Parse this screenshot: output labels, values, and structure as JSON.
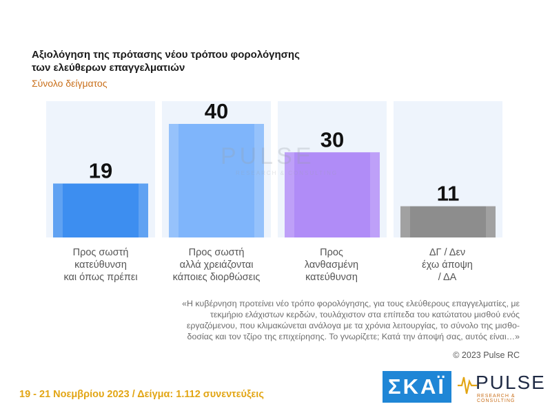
{
  "title": "Αξιολόγηση της πρότασης νέου τρόπου φορολόγησης των ελεύθερων επαγγελματιών",
  "subtitle": "Σύνολο δείγματος",
  "chart_data": {
    "type": "bar",
    "categories": [
      "Προς σωστή κατεύθυνση και όπως πρέπει",
      "Προς σωστή αλλά χρειάζονται κάποιες διορθώσεις",
      "Προς λανθασμένη κατεύθυνση",
      "ΔΓ / Δεν έχω άποψη / ΔΑ"
    ],
    "values": [
      19,
      40,
      30,
      11
    ],
    "ylim": [
      0,
      48
    ],
    "colors": [
      "#3d8ef0",
      "#7fb5fb",
      "#b08cf7",
      "#8d8d8d"
    ],
    "grid": false,
    "legend": "none"
  },
  "category_labels": [
    [
      "Προς σωστή",
      "κατεύθυνση",
      "και όπως πρέπει"
    ],
    [
      "Προς σωστή",
      "αλλά χρειάζονται",
      "κάποιες διορθώσεις"
    ],
    [
      "Προς",
      "λανθασμένη",
      "κατεύθυνση"
    ],
    [
      "ΔΓ / Δεν",
      "έχω άποψη",
      "/ ΔΑ"
    ]
  ],
  "quote": "«Η κυβέρνηση προτείνει νέο τρόπο φορολόγησης, για τους ελεύθερους επαγγελματίες, με τεκμήριο ελάχιστων κερδών, τουλάχιστον στα επίπεδα του κατώτατου μισθού ενός εργαζόμενου, που κλιμακώνεται ανάλογα με τα χρόνια λειτουργίας, το σύνολο της μισθο- δοσίας και τον τζίρο της επιχείρησης. Το γνωρίζετε; Κατά την άποψή σας, αυτός είναι…»",
  "copyright": "© 2023 Pulse RC",
  "footer": "19 - 21 Νοεμβρίου 2023 / Δείγμα: 1.112 συνεντεύξεις",
  "logos": {
    "skai": "ΣΚΑΪ",
    "pulse": "PULSE",
    "pulse_sub": "RESEARCH & CONSULTING"
  },
  "watermark": {
    "name": "PULSE",
    "sub": "RESEARCH & CONSULTING"
  }
}
